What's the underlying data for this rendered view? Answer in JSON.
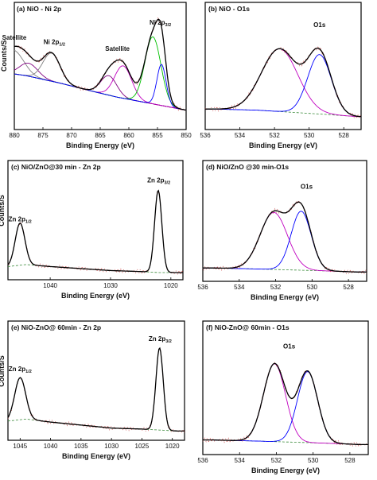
{
  "chart_data": [
    {
      "type": "line",
      "panel": "(a)",
      "title": "NiO - Ni 2p",
      "xlabel": "Binding Energy (eV)",
      "ylabel": "Counts/S",
      "xlim": [
        880,
        850
      ],
      "ylim": [
        0,
        1
      ],
      "xticks": [
        880,
        875,
        870,
        865,
        860,
        855,
        850
      ],
      "baseline": {
        "x": [
          882,
          878,
          872,
          866,
          862,
          858,
          855,
          852,
          850
        ],
        "y": [
          0.5,
          0.47,
          0.4,
          0.32,
          0.27,
          0.23,
          0.2,
          0.17,
          0.15
        ]
      },
      "series": [
        {
          "name": "",
          "color": "#808080",
          "peaks": [
            {
              "c": 880.2,
              "w": 1.8,
              "h": 0.22
            }
          ]
        },
        {
          "name": "",
          "color": "#800080",
          "peaks": [
            {
              "c": 877.5,
              "w": 1.6,
              "h": 0.12
            }
          ]
        },
        {
          "name": "",
          "color": "#808080",
          "peaks": [
            {
              "c": 873.5,
              "w": 1.5,
              "h": 0.26
            }
          ]
        },
        {
          "name": "",
          "color": "#800080",
          "peaks": [
            {
              "c": 863.5,
              "w": 1.4,
              "h": 0.18
            }
          ]
        },
        {
          "name": "",
          "color": "#c000c0",
          "peaks": [
            {
              "c": 861.0,
              "w": 1.5,
              "h": 0.3
            }
          ]
        },
        {
          "name": "",
          "color": "#00c000",
          "peaks": [
            {
              "c": 855.8,
              "w": 1.4,
              "h": 0.62
            }
          ]
        },
        {
          "name": "",
          "color": "#0000ff",
          "peaks": [
            {
              "c": 854.3,
              "w": 0.8,
              "h": 0.38
            }
          ]
        }
      ],
      "annotations": [
        {
          "text": "Satellite",
          "x": 880,
          "y": 0.8
        },
        {
          "text": "Ni 2p",
          "sub": "1/2",
          "x": 873,
          "y": 0.76
        },
        {
          "text": "Satellite",
          "x": 862,
          "y": 0.7
        },
        {
          "text": "Ni 2p",
          "sub": "3/2",
          "x": 854.5,
          "y": 0.94
        }
      ]
    },
    {
      "type": "line",
      "panel": "(b)",
      "title": "NiO - O1s",
      "xlabel": "Binding Energy (eV)",
      "ylabel": "",
      "xlim": [
        536,
        527
      ],
      "ylim": [
        0,
        1
      ],
      "xticks": [
        536,
        534,
        532,
        530,
        528
      ],
      "baseline": {
        "x": [
          535.5,
          533,
          531,
          529,
          527.2
        ],
        "y": [
          0.16,
          0.15,
          0.13,
          0.11,
          0.09
        ]
      },
      "series": [
        {
          "name": "",
          "color": "#c000c0",
          "peaks": [
            {
              "c": 531.7,
              "w": 1.05,
              "h": 0.58
            }
          ]
        },
        {
          "name": "",
          "color": "#0000ff",
          "peaks": [
            {
              "c": 529.4,
              "w": 0.68,
              "h": 0.55
            }
          ]
        }
      ],
      "annotations": [
        {
          "text": "O1s",
          "x": 529.4,
          "y": 0.92
        }
      ]
    },
    {
      "type": "line",
      "panel": "(c)",
      "title": "NiO/ZnO@30 min - Zn 2p",
      "xlabel": "Binding Energy (eV)",
      "ylabel": "Counts/S",
      "xlim": [
        1047,
        1018
      ],
      "ylim": [
        0,
        1
      ],
      "xticks": [
        1040,
        1030,
        1020
      ],
      "baseline": {
        "x": [
          1047,
          1044,
          1040,
          1035,
          1030,
          1025,
          1022,
          1019
        ],
        "y": [
          0.1,
          0.12,
          0.1,
          0.08,
          0.06,
          0.05,
          0.04,
          0.04
        ]
      },
      "series": [
        {
          "name": "",
          "color": "#000000",
          "peaks": [
            {
              "c": 1045.0,
              "w": 0.8,
              "h": 0.42
            },
            {
              "c": 1022.1,
              "w": 0.6,
              "h": 0.82
            }
          ]
        }
      ],
      "annotations": [
        {
          "text": "Zn 2p",
          "sub": "1/2",
          "x": 1045,
          "y": 0.55
        },
        {
          "text": "Zn 2p",
          "sub": "3/2",
          "x": 1022,
          "y": 0.94
        }
      ]
    },
    {
      "type": "line",
      "panel": "(d)",
      "title": "NiO/ZnO @30 min-O1s",
      "xlabel": "Binding Energy (eV)",
      "ylabel": "",
      "xlim": [
        536,
        527
      ],
      "ylim": [
        0,
        1
      ],
      "xticks": [
        536,
        534,
        532,
        530,
        528
      ],
      "baseline": {
        "x": [
          535.5,
          533,
          531,
          529,
          527.5
        ],
        "y": [
          0.1,
          0.09,
          0.08,
          0.07,
          0.06
        ]
      },
      "series": [
        {
          "name": "",
          "color": "#c000c0",
          "peaks": [
            {
              "c": 532.1,
              "w": 0.75,
              "h": 0.56
            }
          ]
        },
        {
          "name": "",
          "color": "#0000ff",
          "peaks": [
            {
              "c": 530.6,
              "w": 0.55,
              "h": 0.58
            }
          ]
        }
      ],
      "annotations": [
        {
          "text": "O1s",
          "x": 530.3,
          "y": 0.88
        }
      ]
    },
    {
      "type": "line",
      "panel": "(e)",
      "title": "NiO-ZnO@ 60min - Zn 2p",
      "xlabel": "Binding Energy (eV)",
      "ylabel": "Counts/S",
      "xlim": [
        1047,
        1018
      ],
      "ylim": [
        0,
        1
      ],
      "xticks": [
        1045,
        1040,
        1035,
        1030,
        1025,
        1020
      ],
      "baseline": {
        "x": [
          1047,
          1044,
          1040,
          1035,
          1030,
          1025,
          1022,
          1019
        ],
        "y": [
          0.16,
          0.18,
          0.15,
          0.12,
          0.09,
          0.08,
          0.07,
          0.06
        ]
      },
      "series": [
        {
          "name": "",
          "color": "#000000",
          "peaks": [
            {
              "c": 1045.0,
              "w": 0.9,
              "h": 0.42
            },
            {
              "c": 1022.1,
              "w": 0.6,
              "h": 0.82
            }
          ]
        }
      ],
      "annotations": [
        {
          "text": "Zn 2p",
          "sub": "1/2",
          "x": 1045,
          "y": 0.66
        },
        {
          "text": "Zn 2p",
          "sub": "3/2",
          "x": 1022,
          "y": 0.96
        }
      ]
    },
    {
      "type": "line",
      "panel": "(f)",
      "title": "NiO-ZnO@ 60min - O1s",
      "xlabel": "Binding Energy (eV)",
      "ylabel": "",
      "xlim": [
        536,
        527
      ],
      "ylim": [
        0,
        1
      ],
      "xticks": [
        536,
        534,
        532,
        530,
        528
      ],
      "baseline": {
        "x": [
          535.5,
          533,
          531,
          529,
          527.5
        ],
        "y": [
          0.1,
          0.09,
          0.08,
          0.07,
          0.06
        ]
      },
      "series": [
        {
          "name": "",
          "color": "#c000c0",
          "peaks": [
            {
              "c": 532.1,
              "w": 0.6,
              "h": 0.68
            }
          ]
        },
        {
          "name": "",
          "color": "#0000ff",
          "peaks": [
            {
              "c": 530.3,
              "w": 0.55,
              "h": 0.62
            }
          ]
        }
      ],
      "annotations": [
        {
          "text": "O1s",
          "x": 531.3,
          "y": 0.9
        }
      ]
    }
  ]
}
